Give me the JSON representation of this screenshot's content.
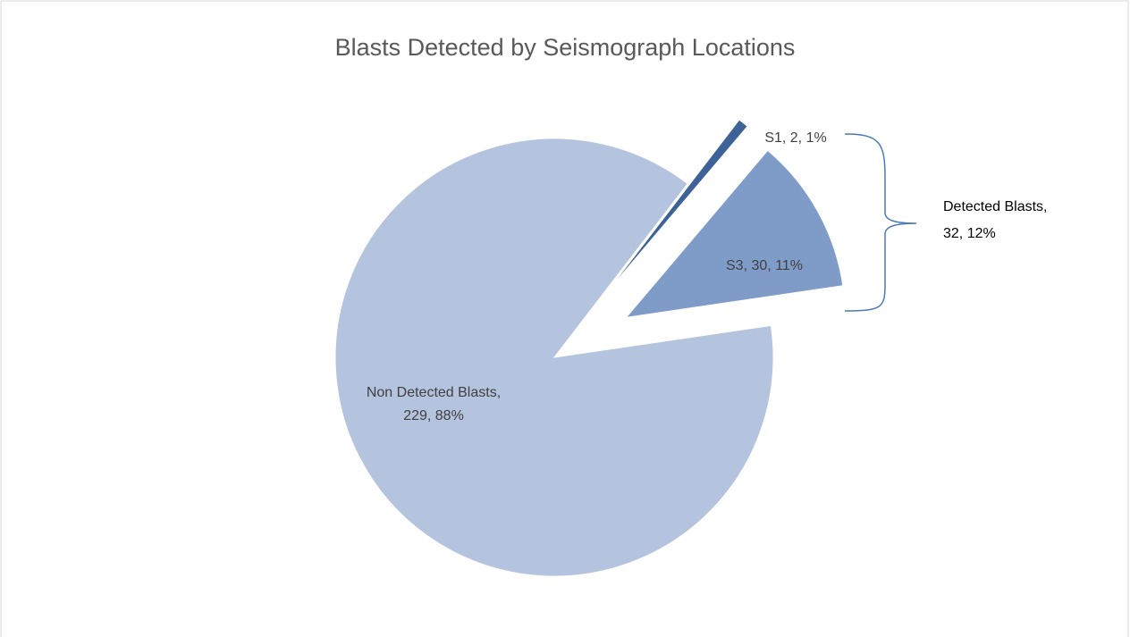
{
  "chart_data": {
    "type": "pie",
    "title": "Blasts Detected by Seismograph Locations",
    "categories": [
      "S1",
      "S3",
      "Non Detected Blasts"
    ],
    "values": [
      2,
      30,
      229
    ],
    "value_labels": [
      "S1, 2, 1%",
      "S3, 30, 11%",
      "Non Detected Blasts, 229, 88%"
    ],
    "colors": [
      "#3c6298",
      "#7f9cc9",
      "#b4c3de"
    ],
    "annotations": [
      "Detected Blasts, 32, 12%"
    ]
  }
}
